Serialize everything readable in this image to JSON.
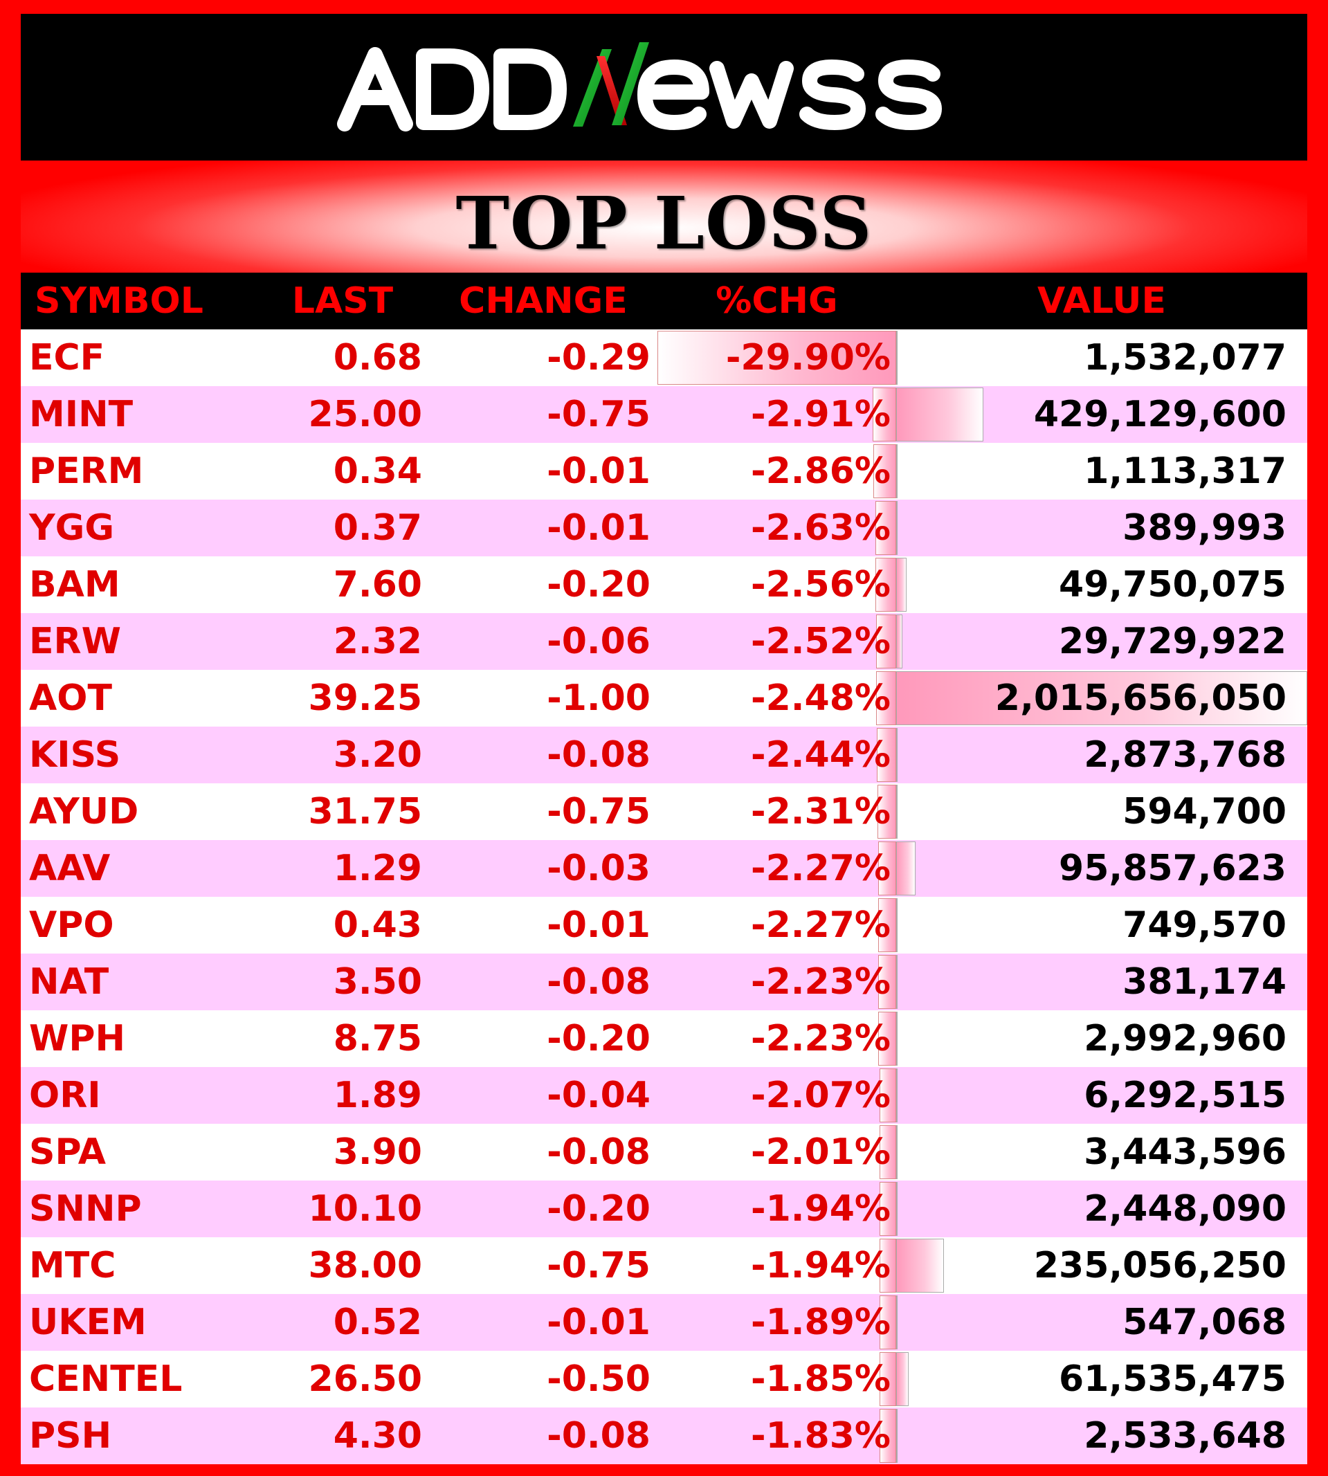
{
  "brand": {
    "name": "ADDNewss"
  },
  "title": "TOP LOSS",
  "headers": {
    "symbol": "SYMBOL",
    "last": "LAST",
    "change": "CHANGE",
    "pct": "%CHG",
    "value": "VALUE"
  },
  "rows": [
    {
      "symbol": "ECF",
      "last": "0.68",
      "change": "-0.29",
      "pct": "-29.90%",
      "value": "1,532,077"
    },
    {
      "symbol": "MINT",
      "last": "25.00",
      "change": "-0.75",
      "pct": "-2.91%",
      "value": "429,129,600"
    },
    {
      "symbol": "PERM",
      "last": "0.34",
      "change": "-0.01",
      "pct": "-2.86%",
      "value": "1,113,317"
    },
    {
      "symbol": "YGG",
      "last": "0.37",
      "change": "-0.01",
      "pct": "-2.63%",
      "value": "389,993"
    },
    {
      "symbol": "BAM",
      "last": "7.60",
      "change": "-0.20",
      "pct": "-2.56%",
      "value": "49,750,075"
    },
    {
      "symbol": "ERW",
      "last": "2.32",
      "change": "-0.06",
      "pct": "-2.52%",
      "value": "29,729,922"
    },
    {
      "symbol": "AOT",
      "last": "39.25",
      "change": "-1.00",
      "pct": "-2.48%",
      "value": "2,015,656,050"
    },
    {
      "symbol": "KISS",
      "last": "3.20",
      "change": "-0.08",
      "pct": "-2.44%",
      "value": "2,873,768"
    },
    {
      "symbol": "AYUD",
      "last": "31.75",
      "change": "-0.75",
      "pct": "-2.31%",
      "value": "594,700"
    },
    {
      "symbol": "AAV",
      "last": "1.29",
      "change": "-0.03",
      "pct": "-2.27%",
      "value": "95,857,623"
    },
    {
      "symbol": "VPO",
      "last": "0.43",
      "change": "-0.01",
      "pct": "-2.27%",
      "value": "749,570"
    },
    {
      "symbol": "NAT",
      "last": "3.50",
      "change": "-0.08",
      "pct": "-2.23%",
      "value": "381,174"
    },
    {
      "symbol": "WPH",
      "last": "8.75",
      "change": "-0.20",
      "pct": "-2.23%",
      "value": "2,992,960"
    },
    {
      "symbol": "ORI",
      "last": "1.89",
      "change": "-0.04",
      "pct": "-2.07%",
      "value": "6,292,515"
    },
    {
      "symbol": "SPA",
      "last": "3.90",
      "change": "-0.08",
      "pct": "-2.01%",
      "value": "3,443,596"
    },
    {
      "symbol": "SNNP",
      "last": "10.10",
      "change": "-0.20",
      "pct": "-1.94%",
      "value": "2,448,090"
    },
    {
      "symbol": "MTC",
      "last": "38.00",
      "change": "-0.75",
      "pct": "-1.94%",
      "value": "235,056,250"
    },
    {
      "symbol": "UKEM",
      "last": "0.52",
      "change": "-0.01",
      "pct": "-1.89%",
      "value": "547,068"
    },
    {
      "symbol": "CENTEL",
      "last": "26.50",
      "change": "-0.50",
      "pct": "-1.85%",
      "value": "61,535,475"
    },
    {
      "symbol": "PSH",
      "last": "4.30",
      "change": "-0.08",
      "pct": "-1.83%",
      "value": "2,533,648"
    }
  ],
  "colors": {
    "loss_red": "#e00000",
    "stripe_pink": "#ffccff",
    "frame_red": "#ff0000",
    "header_black": "#000000"
  }
}
